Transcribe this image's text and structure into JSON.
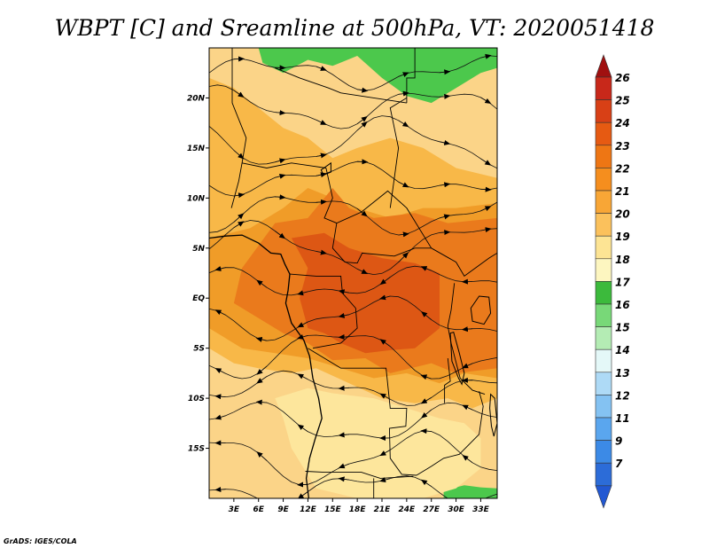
{
  "title": "WBPT [C] and Sreamline at 500hPa, VT: 2020051418",
  "credit": "GrADS: IGES/COLA",
  "map": {
    "lon_range": [
      0,
      35
    ],
    "lat_range": [
      -20,
      25
    ],
    "lat_ticks": [
      {
        "value": 20,
        "label": "20N"
      },
      {
        "value": 15,
        "label": "15N"
      },
      {
        "value": 10,
        "label": "10N"
      },
      {
        "value": 5,
        "label": "5N"
      },
      {
        "value": 0,
        "label": "EQ"
      },
      {
        "value": -5,
        "label": "5S"
      },
      {
        "value": -10,
        "label": "10S"
      },
      {
        "value": -15,
        "label": "15S"
      }
    ],
    "lon_ticks": [
      {
        "value": 3,
        "label": "3E"
      },
      {
        "value": 6,
        "label": "6E"
      },
      {
        "value": 9,
        "label": "9E"
      },
      {
        "value": 12,
        "label": "12E"
      },
      {
        "value": 15,
        "label": "15E"
      },
      {
        "value": 18,
        "label": "18E"
      },
      {
        "value": 21,
        "label": "21E"
      },
      {
        "value": 24,
        "label": "24E"
      },
      {
        "value": 27,
        "label": "27E"
      },
      {
        "value": 30,
        "label": "30E"
      },
      {
        "value": 33,
        "label": "33E"
      }
    ],
    "field_regions": [
      {
        "level": 17,
        "color": "#4cc84c",
        "points": [
          [
            6.5,
            23.5
          ],
          [
            9,
            22.5
          ],
          [
            12,
            23.8
          ],
          [
            15,
            23.2
          ],
          [
            18,
            24.2
          ],
          [
            21,
            22
          ],
          [
            24,
            20.2
          ],
          [
            27,
            19.5
          ],
          [
            30,
            21
          ],
          [
            33,
            22.5
          ],
          [
            35,
            23
          ],
          [
            35,
            25
          ],
          [
            6,
            25
          ]
        ]
      },
      {
        "level": 17,
        "color": "#4cc84c",
        "points": [
          [
            28.5,
            -19.2
          ],
          [
            31,
            -18.7
          ],
          [
            33,
            -18.9
          ],
          [
            35,
            -19
          ],
          [
            35,
            -20
          ],
          [
            28.5,
            -20
          ]
        ]
      },
      {
        "level": 20,
        "color": "#f8b848",
        "points": [
          [
            0,
            22
          ],
          [
            3,
            21
          ],
          [
            6,
            19
          ],
          [
            9,
            17
          ],
          [
            12,
            16
          ],
          [
            15,
            14
          ],
          [
            18,
            15
          ],
          [
            22,
            16
          ],
          [
            26,
            15
          ],
          [
            30,
            13
          ],
          [
            35,
            12
          ],
          [
            35,
            -10
          ],
          [
            32,
            -11
          ],
          [
            29,
            -10
          ],
          [
            25,
            -10.5
          ],
          [
            21,
            -10
          ],
          [
            17,
            -8.5
          ],
          [
            13,
            -7
          ],
          [
            10,
            -7.5
          ],
          [
            6,
            -7
          ],
          [
            3,
            -6.5
          ],
          [
            0,
            -5
          ]
        ]
      },
      {
        "level": 21,
        "color": "#f09c28",
        "points": [
          [
            0,
            6
          ],
          [
            5,
            7
          ],
          [
            9,
            9
          ],
          [
            12,
            11
          ],
          [
            15,
            10
          ],
          [
            18,
            9
          ],
          [
            22,
            8
          ],
          [
            26,
            9
          ],
          [
            30,
            9
          ],
          [
            35,
            9.5
          ],
          [
            35,
            -8
          ],
          [
            31,
            -7.5
          ],
          [
            28,
            -8.5
          ],
          [
            24,
            -7.5
          ],
          [
            20,
            -8
          ],
          [
            16,
            -7
          ],
          [
            12,
            -6
          ],
          [
            8,
            -5.5
          ],
          [
            4,
            -5
          ],
          [
            0,
            -3
          ]
        ]
      },
      {
        "level": 22,
        "color": "#ea7a1c",
        "points": [
          [
            8,
            7.5
          ],
          [
            12,
            8
          ],
          [
            15,
            11
          ],
          [
            17,
            9
          ],
          [
            20,
            8
          ],
          [
            25,
            8.5
          ],
          [
            29,
            7.5
          ],
          [
            35,
            8
          ],
          [
            35,
            -7
          ],
          [
            30,
            -7.5
          ],
          [
            27,
            -6.5
          ],
          [
            22,
            -7.5
          ],
          [
            19,
            -6
          ],
          [
            15,
            -6.2
          ],
          [
            12,
            -4.5
          ],
          [
            9,
            -3.5
          ],
          [
            6,
            -2
          ],
          [
            3,
            -0.5
          ],
          [
            4,
            3
          ]
        ]
      },
      {
        "level": 23,
        "color": "#dd5714",
        "points": [
          [
            10,
            6
          ],
          [
            14,
            6.5
          ],
          [
            17,
            5
          ],
          [
            21,
            4
          ],
          [
            25,
            3.5
          ],
          [
            28,
            2.5
          ],
          [
            28,
            -3
          ],
          [
            25,
            -5
          ],
          [
            22,
            -5.2
          ],
          [
            19,
            -5.5
          ],
          [
            16,
            -4.5
          ],
          [
            14,
            -3.5
          ],
          [
            12,
            -3
          ],
          [
            11,
            0
          ],
          [
            12,
            3
          ]
        ]
      },
      {
        "level": 19,
        "color": "#fde69c",
        "points": [
          [
            8,
            -10
          ],
          [
            12,
            -9
          ],
          [
            15,
            -9.5
          ],
          [
            20,
            -10
          ],
          [
            24,
            -11
          ],
          [
            28,
            -12
          ],
          [
            31,
            -12.5
          ],
          [
            33,
            -14
          ],
          [
            33,
            -17
          ],
          [
            30,
            -19
          ],
          [
            26,
            -20
          ],
          [
            18,
            -20
          ],
          [
            13,
            -19
          ],
          [
            10,
            -15
          ],
          [
            9,
            -12
          ]
        ]
      }
    ],
    "coastline": [
      [
        0,
        6
      ],
      [
        2,
        6.2
      ],
      [
        4,
        6.3
      ],
      [
        6,
        5.5
      ],
      [
        7.5,
        4.5
      ],
      [
        8.7,
        4.4
      ],
      [
        9.2,
        3.4
      ],
      [
        9.8,
        2.4
      ],
      [
        9.6,
        0.8
      ],
      [
        9.3,
        -0.5
      ],
      [
        10,
        -2.5
      ],
      [
        11.5,
        -4.2
      ],
      [
        12.2,
        -5.8
      ],
      [
        12.6,
        -8
      ],
      [
        13.3,
        -10
      ],
      [
        13.7,
        -12
      ],
      [
        12.9,
        -14
      ],
      [
        12.2,
        -16
      ],
      [
        11.8,
        -18
      ],
      [
        12.1,
        -20
      ]
    ],
    "borders": [
      [
        [
          2.8,
          25
        ],
        [
          2.8,
          19.5
        ],
        [
          4.5,
          16
        ],
        [
          4,
          13.5
        ],
        [
          3.6,
          11.7
        ],
        [
          2.7,
          9
        ]
      ],
      [
        [
          8,
          23
        ],
        [
          11,
          22
        ],
        [
          14.5,
          21
        ],
        [
          16,
          20.5
        ],
        [
          24,
          19.5
        ]
      ],
      [
        [
          4,
          13.5
        ],
        [
          7,
          13
        ],
        [
          10,
          13.5
        ],
        [
          12.5,
          13.2
        ],
        [
          14.2,
          13
        ]
      ],
      [
        [
          14.2,
          13
        ],
        [
          15,
          10
        ],
        [
          14,
          8
        ],
        [
          15.5,
          7.5
        ],
        [
          18.5,
          8.6
        ],
        [
          21.7,
          10.7
        ],
        [
          24,
          9
        ],
        [
          27,
          5
        ]
      ],
      [
        [
          27,
          5
        ],
        [
          30,
          3.6
        ],
        [
          31,
          2.2
        ],
        [
          34,
          4
        ],
        [
          35,
          4.5
        ]
      ],
      [
        [
          24,
          19.5
        ],
        [
          24,
          22
        ],
        [
          25,
          22
        ],
        [
          25,
          25
        ]
      ],
      [
        [
          22,
          9
        ],
        [
          23,
          15
        ],
        [
          22,
          19
        ],
        [
          24,
          20
        ]
      ],
      [
        [
          15.5,
          7.5
        ],
        [
          15,
          5
        ],
        [
          16.5,
          3.6
        ],
        [
          18,
          3.5
        ],
        [
          18.6,
          4.5
        ],
        [
          22.5,
          4.2
        ],
        [
          25,
          5
        ],
        [
          27,
          5
        ]
      ],
      [
        [
          9.8,
          2.4
        ],
        [
          13,
          2.2
        ],
        [
          16,
          2.2
        ],
        [
          16.2,
          0.5
        ],
        [
          17.8,
          -1
        ],
        [
          18,
          -3
        ],
        [
          16,
          -4.5
        ],
        [
          12.6,
          -5
        ]
      ],
      [
        [
          29.8,
          1.5
        ],
        [
          29.4,
          -1.2
        ],
        [
          29,
          -2.8
        ],
        [
          29.4,
          -4.5
        ],
        [
          30.5,
          -8
        ],
        [
          32,
          -9.2
        ],
        [
          33.5,
          -9.6
        ]
      ],
      [
        [
          12,
          -5
        ],
        [
          16,
          -7
        ],
        [
          21.5,
          -7
        ],
        [
          22,
          -11
        ],
        [
          24,
          -11
        ],
        [
          23.9,
          -12.8
        ],
        [
          21.9,
          -13
        ],
        [
          22,
          -16
        ],
        [
          23.4,
          -17.6
        ],
        [
          25.2,
          -17.7
        ]
      ],
      [
        [
          25.2,
          -17.7
        ],
        [
          27,
          -16.8
        ],
        [
          28.5,
          -16
        ],
        [
          30.4,
          -15.6
        ],
        [
          32.8,
          -13.6
        ],
        [
          33.3,
          -10.8
        ],
        [
          32.8,
          -9.3
        ]
      ],
      [
        [
          11.7,
          -17.3
        ],
        [
          14,
          -17.4
        ],
        [
          18.5,
          -17.4
        ],
        [
          20.8,
          -18
        ],
        [
          24.8,
          -17.8
        ]
      ],
      [
        [
          20,
          -18
        ],
        [
          20,
          -22
        ]
      ],
      [
        [
          29,
          -6
        ],
        [
          29.3,
          -8.3
        ],
        [
          28.6,
          -8.7
        ],
        [
          28.6,
          -10.5
        ]
      ]
    ],
    "lakes": [
      {
        "name": "Lake Victoria",
        "points": [
          [
            31.8,
            -1
          ],
          [
            32.8,
            0.2
          ],
          [
            34,
            0.1
          ],
          [
            34.2,
            -1.5
          ],
          [
            33.4,
            -2.6
          ],
          [
            32,
            -2.3
          ]
        ]
      },
      {
        "name": "Lake Tanganyika",
        "points": [
          [
            29.3,
            -3.5
          ],
          [
            29.7,
            -3.4
          ],
          [
            30.4,
            -5.5
          ],
          [
            31,
            -7.5
          ],
          [
            30.7,
            -8.6
          ],
          [
            30.3,
            -8
          ],
          [
            29.5,
            -6.3
          ]
        ]
      },
      {
        "name": "Lake Malawi",
        "points": [
          [
            34.2,
            -9.6
          ],
          [
            34.7,
            -10
          ],
          [
            35,
            -12.5
          ],
          [
            34.6,
            -13.8
          ],
          [
            34.3,
            -12.8
          ],
          [
            34.1,
            -11
          ]
        ]
      },
      {
        "name": "Lake Chad",
        "points": [
          [
            13.6,
            12.8
          ],
          [
            14.8,
            13.5
          ],
          [
            14.8,
            12.6
          ],
          [
            13.9,
            12.3
          ]
        ]
      }
    ],
    "streamline_levels": [
      22.5,
      19,
      15.5,
      12,
      8.5,
      5,
      1.5,
      -2,
      -5.5,
      -9,
      -12.5,
      -16,
      -19
    ]
  },
  "colorbar": {
    "levels": [
      {
        "label": "26",
        "color": "#c8281a"
      },
      {
        "label": "25",
        "color": "#d84016"
      },
      {
        "label": "24",
        "color": "#e65a12"
      },
      {
        "label": "23",
        "color": "#ee7614"
      },
      {
        "label": "22",
        "color": "#f58e1e"
      },
      {
        "label": "21",
        "color": "#f8a636"
      },
      {
        "label": "20",
        "color": "#fbc15c"
      },
      {
        "label": "19",
        "color": "#fde494"
      },
      {
        "label": "18",
        "color": "#fdf6c0"
      },
      {
        "label": "17",
        "color": "#3cba3c"
      },
      {
        "label": "16",
        "color": "#78d878"
      },
      {
        "label": "15",
        "color": "#b4ecb4"
      },
      {
        "label": "14",
        "color": "#e4f8f8"
      },
      {
        "label": "13",
        "color": "#aedaf6"
      },
      {
        "label": "12",
        "color": "#84c2f2"
      },
      {
        "label": "11",
        "color": "#5aa6ee"
      },
      {
        "label": "9",
        "color": "#3c8ae6"
      },
      {
        "label": "7",
        "color": "#2c6cd8"
      }
    ],
    "top_cap_color": "#a01010",
    "bottom_cap_color": "#2258d2"
  }
}
